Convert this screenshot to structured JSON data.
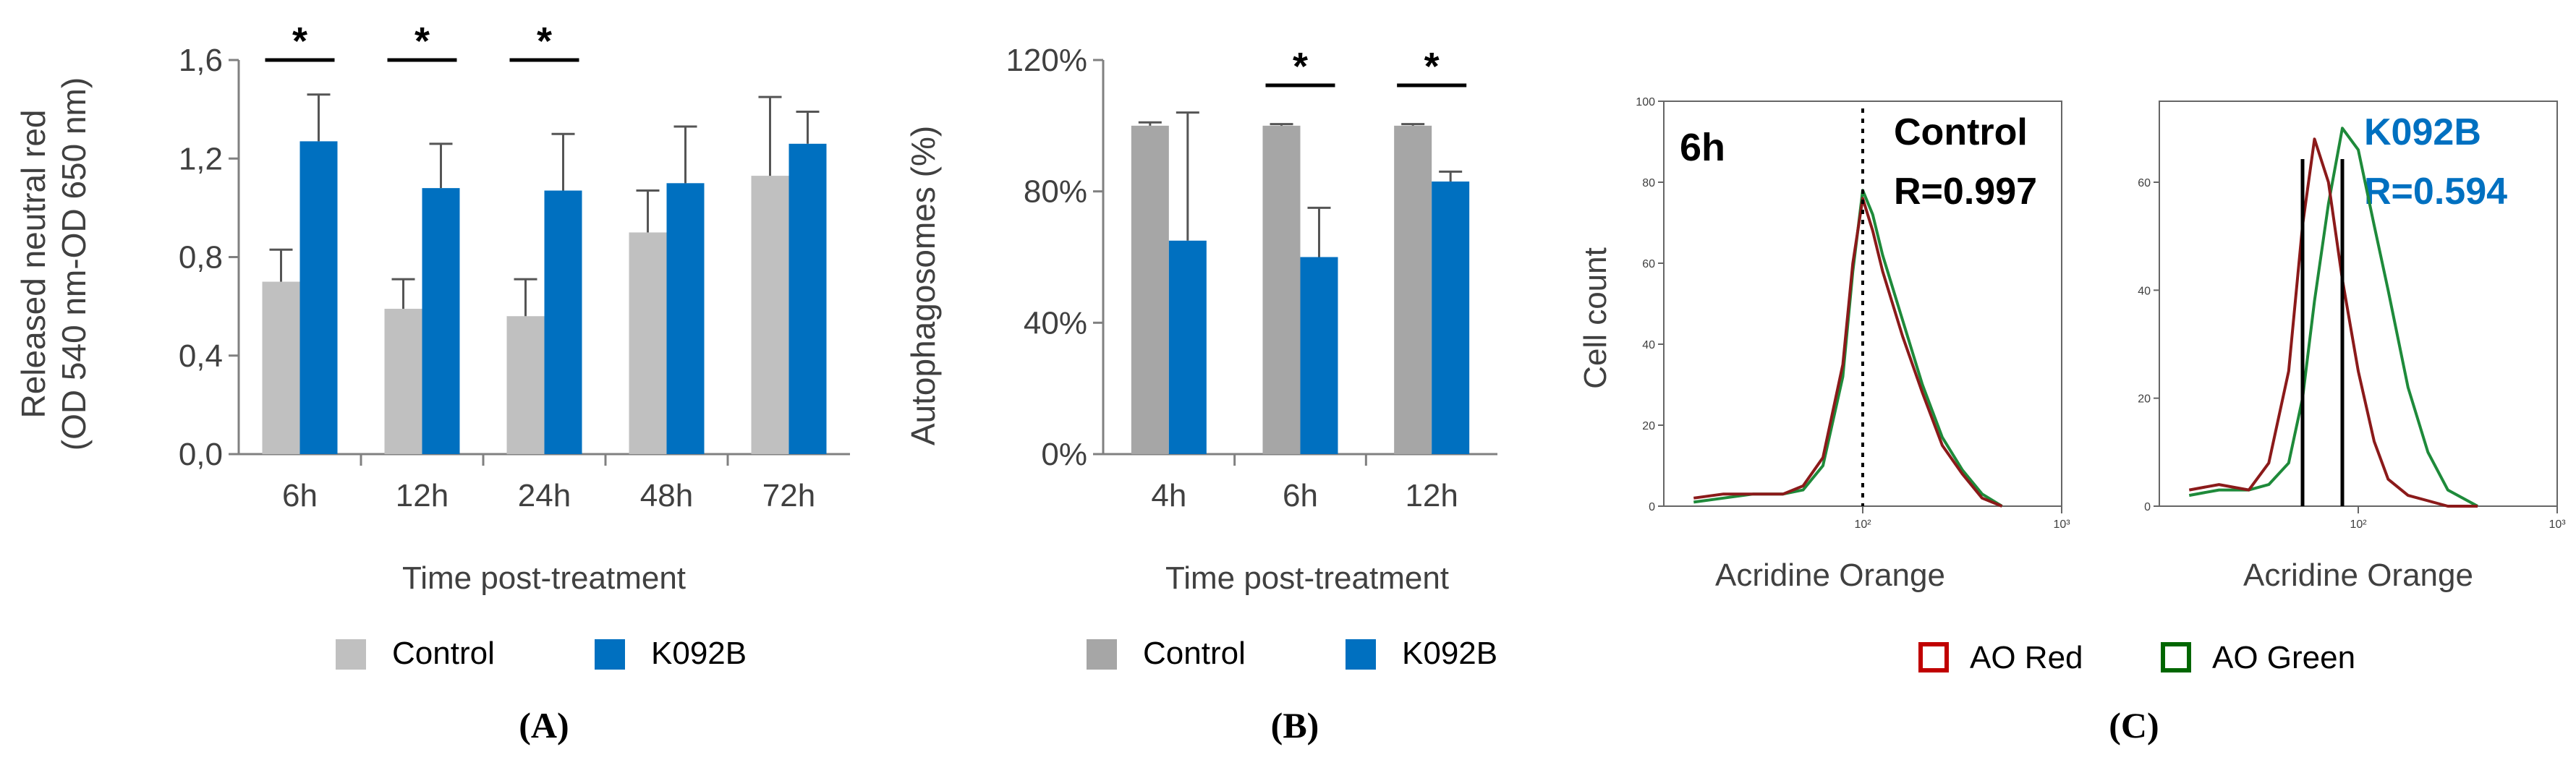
{
  "figure": {
    "panel_labels": [
      "(A)",
      "(B)",
      "(C)"
    ]
  },
  "chart_data": [
    {
      "panel": "A",
      "type": "bar",
      "title": "",
      "xlabel": "Time post-treatment",
      "ylabel_lines": [
        "Released neutral red",
        "(OD 540 nm-OD 650 nm)"
      ],
      "categories": [
        "6h",
        "12h",
        "24h",
        "48h",
        "72h"
      ],
      "ylim": [
        0,
        1.6
      ],
      "yticks": [
        "0,0",
        "0,4",
        "0,8",
        "1,2",
        "1,6"
      ],
      "series": [
        {
          "name": "Control",
          "color": "#c0c0c0",
          "values": [
            0.7,
            0.59,
            0.56,
            0.9,
            1.13
          ],
          "errors": [
            0.13,
            0.12,
            0.15,
            0.17,
            0.32
          ]
        },
        {
          "name": "K092B",
          "color": "#0070c0",
          "values": [
            1.27,
            1.08,
            1.07,
            1.1,
            1.26
          ],
          "errors": [
            0.19,
            0.18,
            0.23,
            0.23,
            0.13
          ]
        }
      ],
      "significance": [
        {
          "category": "6h",
          "label": "*"
        },
        {
          "category": "12h",
          "label": "*"
        },
        {
          "category": "24h",
          "label": "*"
        }
      ],
      "legend": {
        "placement": "bottom",
        "entries": [
          "Control",
          "K092B"
        ]
      }
    },
    {
      "panel": "B",
      "type": "bar",
      "title": "",
      "xlabel": "Time post-treatment",
      "ylabel": "Autophagosomes (%)",
      "categories": [
        "4h",
        "6h",
        "12h"
      ],
      "ylim": [
        0,
        120
      ],
      "yticks": [
        "0%",
        "40%",
        "80%",
        "120%"
      ],
      "series": [
        {
          "name": "Control",
          "color": "#a6a6a6",
          "values": [
            100,
            100,
            100
          ],
          "errors": [
            1,
            0.5,
            0.5
          ]
        },
        {
          "name": "K092B",
          "color": "#0070c0",
          "values": [
            65,
            60,
            83
          ],
          "errors": [
            39,
            15,
            3
          ]
        }
      ],
      "significance": [
        {
          "category": "6h",
          "label": "*"
        },
        {
          "category": "12h",
          "label": "*"
        }
      ],
      "legend": {
        "placement": "bottom",
        "entries": [
          "Control",
          "K092B"
        ]
      }
    },
    {
      "panel": "C",
      "type": "line",
      "xlabel": "Acridine Orange",
      "ylabel": "Cell count",
      "log_x": true,
      "subplots": [
        {
          "timepoint": "6h",
          "label": "Control",
          "r_value": "R=0.997",
          "label_color": "#000000",
          "yticks": [
            "0",
            "20",
            "40",
            "60",
            "80",
            "100"
          ],
          "ylim": [
            0,
            100
          ],
          "xticks": [
            "10²",
            "10³"
          ],
          "x_log": [
            1.15,
            1.3,
            1.45,
            1.6,
            1.7,
            1.8,
            1.9,
            1.95,
            2.0,
            2.05,
            2.1,
            2.2,
            2.3,
            2.4,
            2.5,
            2.6,
            2.7
          ],
          "red_counts": [
            2,
            3,
            3,
            3,
            5,
            12,
            35,
            60,
            76,
            68,
            58,
            42,
            28,
            15,
            8,
            2,
            0
          ],
          "green_counts": [
            1,
            2,
            3,
            3,
            4,
            10,
            32,
            58,
            78,
            72,
            62,
            46,
            30,
            17,
            9,
            3,
            0
          ]
        },
        {
          "label": "K092B",
          "r_value": "R=0.594",
          "label_color": "#0070c0",
          "yticks": [
            "0",
            "20",
            "40",
            "60"
          ],
          "ylim": [
            0,
            75
          ],
          "xticks": [
            "10²",
            "10³"
          ],
          "x_log": [
            1.15,
            1.3,
            1.45,
            1.55,
            1.65,
            1.72,
            1.78,
            1.85,
            1.92,
            2.0,
            2.08,
            2.15,
            2.25,
            2.35,
            2.45,
            2.6
          ],
          "red_counts": [
            3,
            4,
            3,
            8,
            25,
            52,
            68,
            60,
            42,
            25,
            12,
            5,
            2,
            1,
            0,
            0
          ],
          "green_counts": [
            2,
            3,
            3,
            4,
            8,
            20,
            38,
            56,
            70,
            66,
            52,
            40,
            22,
            10,
            3,
            0
          ]
        }
      ],
      "legend": {
        "placement": "bottom",
        "entries": [
          {
            "name": "AO Red",
            "color": "#c00000"
          },
          {
            "name": "AO Green",
            "color": "#006600"
          }
        ]
      }
    }
  ]
}
